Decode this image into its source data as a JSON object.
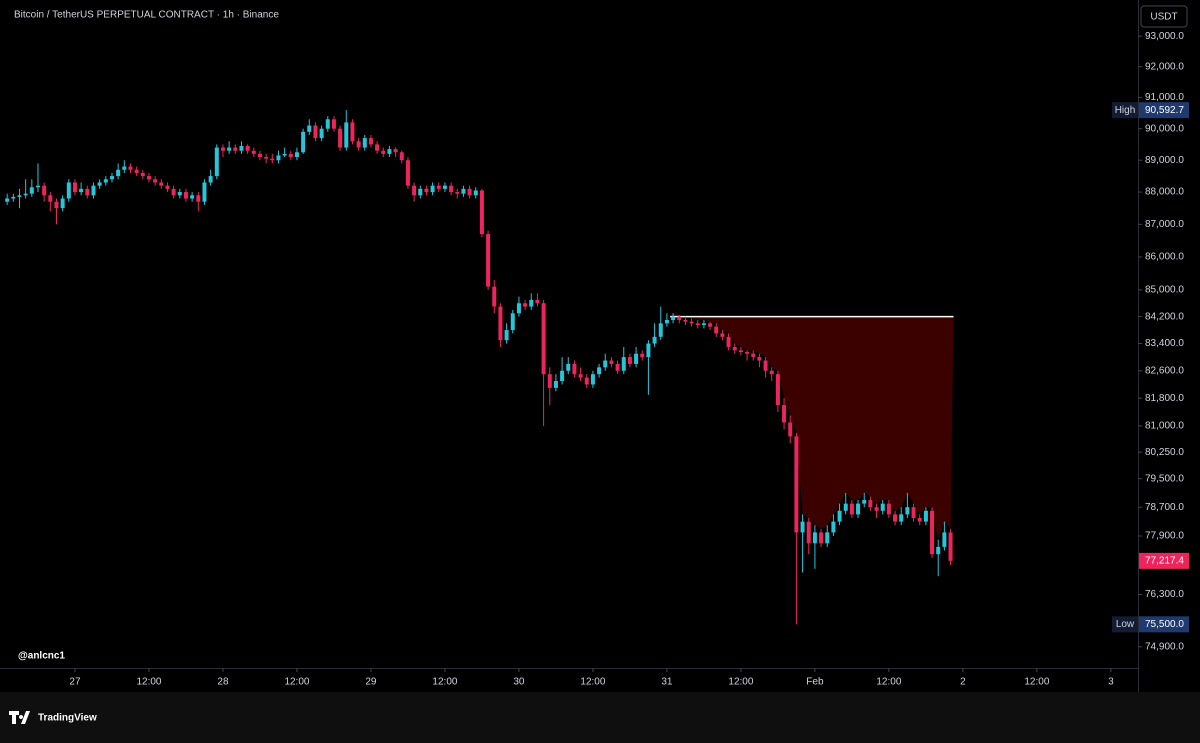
{
  "header": {
    "title": "Bitcoin / TetherUS PERPETUAL CONTRACT · 1h · Binance",
    "currency": "USDT"
  },
  "chart_data": {
    "type": "candlestick",
    "log_scale": true,
    "grid": false,
    "up_color": "#26c6da",
    "down_color": "#f0245c",
    "xlim": [
      -12.16,
      172.4
    ],
    "xticks": [
      {
        "value": 0,
        "label": "27"
      },
      {
        "value": 12,
        "label": "12:00"
      },
      {
        "value": 24,
        "label": "28"
      },
      {
        "value": 36,
        "label": "12:00"
      },
      {
        "value": 48,
        "label": "29"
      },
      {
        "value": 60,
        "label": "12:00"
      },
      {
        "value": 72,
        "label": "30"
      },
      {
        "value": 84,
        "label": "12:00"
      },
      {
        "value": 96,
        "label": "31"
      },
      {
        "value": 108,
        "label": "12:00"
      },
      {
        "value": 120,
        "label": "Feb"
      },
      {
        "value": 132,
        "label": "12:00"
      },
      {
        "value": 144,
        "label": "2"
      },
      {
        "value": 156,
        "label": "12:00"
      },
      {
        "value": 168,
        "label": "3"
      }
    ],
    "ylim": [
      74340,
      94200
    ],
    "yticks": [
      {
        "value": 93000,
        "label": "93,000.0"
      },
      {
        "value": 92000,
        "label": "92,000.0"
      },
      {
        "value": 91000,
        "label": "91,000.0"
      },
      {
        "value": 90000,
        "label": "90,000.0"
      },
      {
        "value": 89000,
        "label": "89,000.0"
      },
      {
        "value": 88000,
        "label": "88,000.0"
      },
      {
        "value": 87000,
        "label": "87,000.0"
      },
      {
        "value": 86000,
        "label": "86,000.0"
      },
      {
        "value": 85000,
        "label": "85,000.0"
      },
      {
        "value": 84200,
        "label": "84,200.0"
      },
      {
        "value": 83400,
        "label": "83,400.0"
      },
      {
        "value": 82600,
        "label": "82,600.0"
      },
      {
        "value": 81800,
        "label": "81,800.0"
      },
      {
        "value": 81000,
        "label": "81,000.0"
      },
      {
        "value": 80250,
        "label": "80,250.0"
      },
      {
        "value": 79500,
        "label": "79,500.0"
      },
      {
        "value": 78700,
        "label": "78,700.0"
      },
      {
        "value": 77900,
        "label": "77,900.0"
      },
      {
        "value": 76300,
        "label": "76,300.0"
      },
      {
        "value": 74900,
        "label": "74,900.0"
      }
    ],
    "high": {
      "name": "High",
      "value": 90592.7,
      "label": "90,592.7"
    },
    "low": {
      "name": "Low",
      "value": 75500,
      "label": "75,500.0"
    },
    "last": {
      "value": 77217.4,
      "label": "77,217.4"
    },
    "zone_level": 84200,
    "watermark": "@anlcnc1",
    "candles": [
      [
        -11,
        87700,
        87950,
        87600,
        87800
      ],
      [
        -10,
        87800,
        87950,
        87700,
        87850
      ],
      [
        -9,
        87850,
        88100,
        87500,
        87900
      ],
      [
        -8,
        87900,
        88400,
        87800,
        87950
      ],
      [
        -7,
        87950,
        88400,
        87850,
        88150
      ],
      [
        -6,
        88150,
        88900,
        88000,
        88200
      ],
      [
        -5,
        88200,
        88300,
        87700,
        87900
      ],
      [
        -4,
        87900,
        88000,
        87400,
        87700
      ],
      [
        -3,
        87700,
        87800,
        87000,
        87500
      ],
      [
        -2,
        87500,
        87900,
        87400,
        87800
      ],
      [
        -1,
        87800,
        88400,
        87700,
        88300
      ],
      [
        0,
        88300,
        88400,
        87900,
        88000
      ],
      [
        1,
        88000,
        88300,
        87900,
        88100
      ],
      [
        2,
        88100,
        88200,
        87800,
        87900
      ],
      [
        3,
        87900,
        88300,
        87800,
        88200
      ],
      [
        4,
        88200,
        88400,
        88100,
        88300
      ],
      [
        5,
        88300,
        88500,
        88200,
        88400
      ],
      [
        6,
        88400,
        88600,
        88300,
        88500
      ],
      [
        7,
        88500,
        88900,
        88400,
        88700
      ],
      [
        8,
        88700,
        89000,
        88600,
        88800
      ],
      [
        9,
        88800,
        88900,
        88600,
        88700
      ],
      [
        10,
        88700,
        88800,
        88500,
        88600
      ],
      [
        11,
        88600,
        88700,
        88400,
        88500
      ],
      [
        12,
        88500,
        88600,
        88300,
        88400
      ],
      [
        13,
        88400,
        88500,
        88200,
        88300
      ],
      [
        14,
        88300,
        88400,
        88100,
        88200
      ],
      [
        15,
        88200,
        88300,
        88000,
        88100
      ],
      [
        16,
        88100,
        88200,
        87800,
        87900
      ],
      [
        17,
        87900,
        88100,
        87800,
        88000
      ],
      [
        18,
        88000,
        88100,
        87700,
        87800
      ],
      [
        19,
        87800,
        88000,
        87700,
        87900
      ],
      [
        20,
        87900,
        88000,
        87400,
        87700
      ],
      [
        21,
        87700,
        88400,
        87600,
        88300
      ],
      [
        22,
        88300,
        88700,
        88200,
        88500
      ],
      [
        23,
        88500,
        89500,
        88400,
        89400
      ],
      [
        24,
        89400,
        89500,
        89100,
        89300
      ],
      [
        25,
        89300,
        89600,
        89200,
        89400
      ],
      [
        26,
        89400,
        89500,
        89200,
        89300
      ],
      [
        27,
        89300,
        89600,
        89200,
        89450
      ],
      [
        28,
        89450,
        89500,
        89200,
        89300
      ],
      [
        29,
        89300,
        89400,
        89100,
        89200
      ],
      [
        30,
        89200,
        89300,
        89000,
        89100
      ],
      [
        31,
        89100,
        89200,
        88900,
        89050
      ],
      [
        32,
        89050,
        89200,
        88900,
        89000
      ],
      [
        33,
        89000,
        89300,
        88900,
        89150
      ],
      [
        34,
        89150,
        89400,
        89100,
        89200
      ],
      [
        35,
        89200,
        89300,
        89000,
        89100
      ],
      [
        36,
        89100,
        89400,
        89000,
        89250
      ],
      [
        37,
        89250,
        90000,
        89200,
        89900
      ],
      [
        38,
        89900,
        90300,
        89800,
        90100
      ],
      [
        39,
        90100,
        90200,
        89600,
        89700
      ],
      [
        40,
        89700,
        90100,
        89600,
        90000
      ],
      [
        41,
        90000,
        90400,
        89900,
        90300
      ],
      [
        42,
        90300,
        90400,
        89900,
        90000
      ],
      [
        43,
        90000,
        90100,
        89300,
        89400
      ],
      [
        44,
        89400,
        90592.7,
        89300,
        90200
      ],
      [
        45,
        90200,
        90300,
        89500,
        89600
      ],
      [
        46,
        89600,
        89700,
        89300,
        89400
      ],
      [
        47,
        89400,
        89800,
        89300,
        89700
      ],
      [
        48,
        89700,
        89800,
        89400,
        89500
      ],
      [
        49,
        89500,
        89600,
        89200,
        89300
      ],
      [
        50,
        89300,
        89400,
        89100,
        89200
      ],
      [
        51,
        89200,
        89450,
        89100,
        89350
      ],
      [
        52,
        89350,
        89400,
        89100,
        89250
      ],
      [
        53,
        89250,
        89300,
        88900,
        89000
      ],
      [
        54,
        89000,
        89100,
        88100,
        88200
      ],
      [
        55,
        88200,
        88300,
        87700,
        87900
      ],
      [
        56,
        87900,
        88200,
        87800,
        88100
      ],
      [
        57,
        88100,
        88200,
        87900,
        88000
      ],
      [
        58,
        88000,
        88300,
        87900,
        88200
      ],
      [
        59,
        88200,
        88300,
        88000,
        88100
      ],
      [
        60,
        88100,
        88300,
        88000,
        88200
      ],
      [
        61,
        88200,
        88300,
        87900,
        88000
      ],
      [
        62,
        88000,
        88100,
        87800,
        87950
      ],
      [
        63,
        87950,
        88200,
        87850,
        88100
      ],
      [
        64,
        88100,
        88200,
        87800,
        87900
      ],
      [
        65,
        87900,
        88150,
        87800,
        88050
      ],
      [
        66,
        88050,
        88100,
        86600,
        86700
      ],
      [
        67,
        86700,
        86800,
        85000,
        85100
      ],
      [
        68,
        85100,
        85300,
        84300,
        84500
      ],
      [
        69,
        84500,
        84600,
        83300,
        83500
      ],
      [
        70,
        83500,
        84000,
        83400,
        83800
      ],
      [
        71,
        83800,
        84400,
        83700,
        84300
      ],
      [
        72,
        84300,
        84800,
        84200,
        84600
      ],
      [
        73,
        84600,
        84700,
        84400,
        84500
      ],
      [
        74,
        84500,
        84900,
        84400,
        84700
      ],
      [
        75,
        84700,
        84900,
        84500,
        84600
      ],
      [
        76,
        84600,
        84700,
        81000,
        82500
      ],
      [
        77,
        82500,
        82700,
        81600,
        82100
      ],
      [
        78,
        82100,
        82500,
        82000,
        82300
      ],
      [
        79,
        82300,
        83000,
        82200,
        82600
      ],
      [
        80,
        82600,
        83000,
        82500,
        82800
      ],
      [
        81,
        82800,
        82900,
        82400,
        82500
      ],
      [
        82,
        82500,
        82700,
        82300,
        82400
      ],
      [
        83,
        82400,
        82500,
        82100,
        82200
      ],
      [
        84,
        82200,
        82600,
        82100,
        82500
      ],
      [
        85,
        82500,
        82800,
        82400,
        82700
      ],
      [
        86,
        82700,
        83100,
        82600,
        82900
      ],
      [
        87,
        82900,
        83000,
        82700,
        82800
      ],
      [
        88,
        82800,
        82900,
        82500,
        82600
      ],
      [
        89,
        82600,
        83300,
        82500,
        83000
      ],
      [
        90,
        83000,
        83100,
        82700,
        82800
      ],
      [
        91,
        82800,
        83300,
        82700,
        83100
      ],
      [
        92,
        83100,
        83200,
        82900,
        83000
      ],
      [
        93,
        83000,
        83500,
        81900,
        83400
      ],
      [
        94,
        83400,
        84000,
        83300,
        83600
      ],
      [
        95,
        83600,
        84500,
        83500,
        84000
      ],
      [
        96,
        84000,
        84300,
        83900,
        84100
      ],
      [
        97,
        84100,
        84300,
        84000,
        84200
      ],
      [
        98,
        84200,
        84250,
        84000,
        84100
      ],
      [
        99,
        84100,
        84200,
        83950,
        84050
      ],
      [
        100,
        84050,
        84150,
        83900,
        84000
      ],
      [
        101,
        84000,
        84100,
        83850,
        83950
      ],
      [
        102,
        83950,
        84100,
        83850,
        84000
      ],
      [
        103,
        84000,
        84050,
        83800,
        83900
      ],
      [
        104,
        83900,
        84000,
        83600,
        83700
      ],
      [
        105,
        83700,
        83800,
        83500,
        83600
      ],
      [
        106,
        83600,
        83700,
        83200,
        83300
      ],
      [
        107,
        83300,
        83400,
        83100,
        83200
      ],
      [
        108,
        83200,
        83300,
        83050,
        83150
      ],
      [
        109,
        83150,
        83200,
        82900,
        83100
      ],
      [
        110,
        83100,
        83200,
        82900,
        83000
      ],
      [
        111,
        83000,
        83100,
        82700,
        82900
      ],
      [
        112,
        82900,
        83000,
        82400,
        82600
      ],
      [
        113,
        82600,
        82700,
        82300,
        82500
      ],
      [
        114,
        82500,
        82600,
        81400,
        81600
      ],
      [
        115,
        81600,
        81800,
        80900,
        81100
      ],
      [
        116,
        81100,
        81300,
        80500,
        80700
      ],
      [
        117,
        80700,
        80800,
        75500,
        78000
      ],
      [
        118,
        78000,
        78500,
        76900,
        78300
      ],
      [
        119,
        78300,
        78400,
        77400,
        77700
      ],
      [
        120,
        77700,
        78200,
        77000,
        78000
      ],
      [
        121,
        78000,
        78100,
        77600,
        77700
      ],
      [
        122,
        77700,
        78200,
        77600,
        78000
      ],
      [
        123,
        78000,
        78500,
        77900,
        78300
      ],
      [
        124,
        78300,
        78800,
        78200,
        78600
      ],
      [
        125,
        78600,
        79100,
        78500,
        78800
      ],
      [
        126,
        78800,
        78900,
        78400,
        78500
      ],
      [
        127,
        78500,
        78900,
        78400,
        78800
      ],
      [
        128,
        78800,
        79100,
        78700,
        78900
      ],
      [
        129,
        78900,
        79000,
        78600,
        78700
      ],
      [
        130,
        78700,
        78800,
        78400,
        78600
      ],
      [
        131,
        78600,
        78900,
        78500,
        78800
      ],
      [
        132,
        78800,
        78900,
        78400,
        78500
      ],
      [
        133,
        78500,
        78600,
        78200,
        78300
      ],
      [
        134,
        78300,
        78700,
        78200,
        78500
      ],
      [
        135,
        78500,
        79100,
        78400,
        78700
      ],
      [
        136,
        78700,
        78800,
        78300,
        78400
      ],
      [
        137,
        78400,
        78500,
        78200,
        78300
      ],
      [
        138,
        78300,
        78700,
        78200,
        78600
      ],
      [
        139,
        78600,
        78700,
        77300,
        77400
      ],
      [
        140,
        77400,
        77800,
        76800,
        77600
      ],
      [
        141,
        77600,
        78300,
        77500,
        78000
      ],
      [
        142,
        78000,
        78100,
        77100,
        77217.4
      ]
    ]
  },
  "footer": {
    "brand": "TradingView"
  }
}
